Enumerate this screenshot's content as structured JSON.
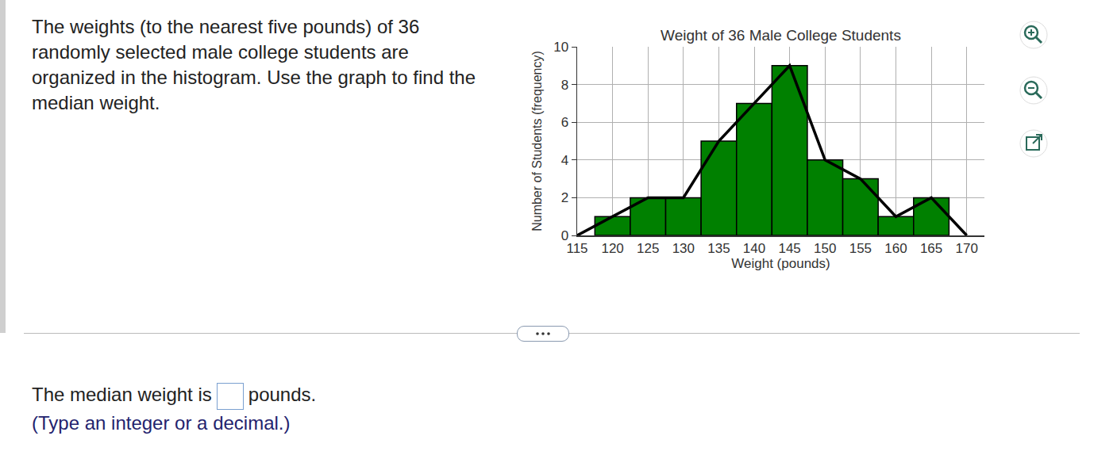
{
  "page": {
    "question": "The weights (to the nearest five pounds) of 36 randomly selected male college students are organized in the histogram. Use the graph to find the median weight.",
    "answer_prefix": "The median weight is",
    "answer_suffix": "pounds.",
    "hint": "(Type an integer or a decimal.)"
  },
  "chart_data": {
    "type": "bar",
    "title": "Weight of 36 Male College Students",
    "x_label": "Weight (pounds)",
    "y_label": "Number of Students (frequency)",
    "xlim": [
      115,
      172.5
    ],
    "xticks": [
      115,
      120,
      125,
      130,
      135,
      140,
      145,
      150,
      155,
      160,
      165,
      170
    ],
    "ylim": [
      0,
      10
    ],
    "yticks": [
      0,
      2,
      4,
      6,
      8,
      10
    ],
    "grid": true,
    "series": [
      {
        "type": "bar",
        "color": "#008000",
        "x": [
          120,
          125,
          130,
          135,
          140,
          145,
          150,
          155,
          160,
          165
        ],
        "values": [
          1,
          2,
          2,
          5,
          7,
          9,
          4,
          3,
          1,
          2
        ]
      },
      {
        "type": "line",
        "color": "#000000",
        "x": [
          115,
          120,
          125,
          130,
          135,
          140,
          145,
          150,
          155,
          160,
          165,
          170
        ],
        "values": [
          0,
          1,
          2,
          2,
          5,
          7,
          9,
          4,
          3,
          1,
          2,
          0
        ]
      }
    ]
  }
}
